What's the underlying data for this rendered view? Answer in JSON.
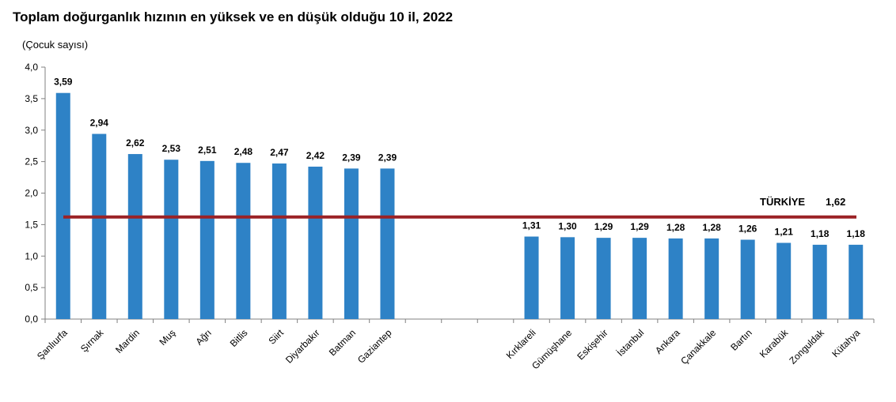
{
  "chart_data": {
    "type": "bar",
    "title": "Toplam doğurganlık hızının en yüksek ve en düşük olduğu 10 il, 2022",
    "ylabel": "(Çocuk sayısı)",
    "ylim": [
      0,
      4.0
    ],
    "yticks": [
      "0,0",
      "0,5",
      "1,0",
      "1,5",
      "2,0",
      "2,5",
      "3,0",
      "3,5",
      "4,0"
    ],
    "grid": false,
    "categories": [
      "Şanlıurfa",
      "Şırnak",
      "Mardin",
      "Muş",
      "Ağrı",
      "Bitlis",
      "Siirt",
      "Diyarbakır",
      "Batman",
      "Gaziantep",
      "",
      "",
      "",
      "Kırklareli",
      "Gümüşhane",
      "Eskişehir",
      "İstanbul",
      "Ankara",
      "Çanakkale",
      "Bartın",
      "Karabük",
      "Zonguldak",
      "Kütahya"
    ],
    "values": [
      3.59,
      2.94,
      2.62,
      2.53,
      2.51,
      2.48,
      2.47,
      2.42,
      2.39,
      2.39,
      null,
      null,
      null,
      1.31,
      1.3,
      1.29,
      1.29,
      1.28,
      1.28,
      1.26,
      1.21,
      1.18,
      1.18
    ],
    "value_labels": [
      "3,59",
      "2,94",
      "2,62",
      "2,53",
      "2,51",
      "2,48",
      "2,47",
      "2,42",
      "2,39",
      "2,39",
      "",
      "",
      "",
      "1,31",
      "1,30",
      "1,29",
      "1,29",
      "1,28",
      "1,28",
      "1,26",
      "1,21",
      "1,18",
      "1,18"
    ],
    "reference_line": {
      "label": "TÜRKİYE",
      "value": 1.62,
      "value_label": "1,62",
      "color": "#9b2226"
    },
    "bar_color": "#2e82c6"
  }
}
